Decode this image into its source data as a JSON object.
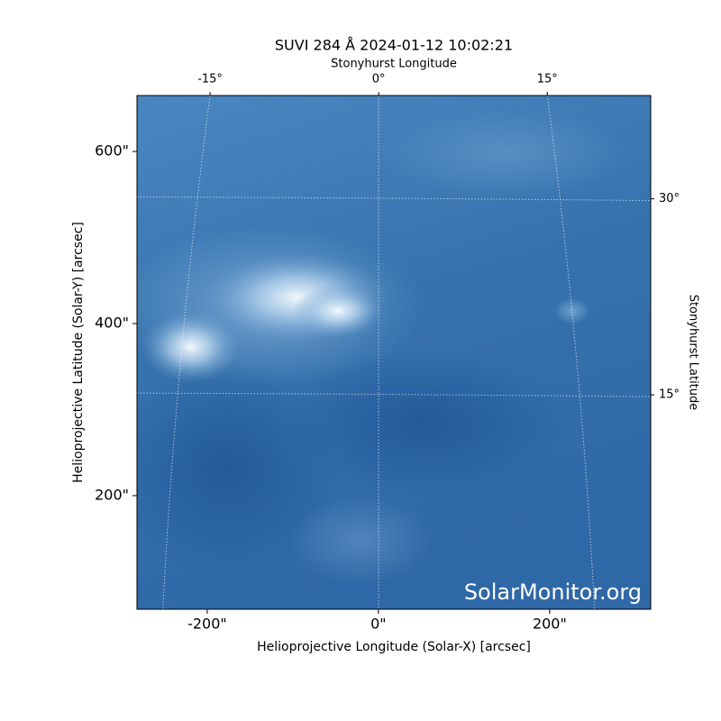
{
  "chart_data": {
    "type": "image",
    "title": "SUVI 284 Å 2024-01-12 10:02:21",
    "xlabel": "Helioprojective Longitude (Solar-X) [arcsec]",
    "ylabel": "Helioprojective Latitude (Solar-Y) [arcsec]",
    "x2label": "Stonyhurst Longitude",
    "y2label": "Stonyhurst Latitude",
    "watermark": "SolarMonitor.org",
    "xlim": [
      -282,
      318
    ],
    "ylim": [
      68,
      665
    ],
    "xticks": [
      {
        "value": -200,
        "label": "-200\""
      },
      {
        "value": 0,
        "label": "0\""
      },
      {
        "value": 200,
        "label": "200\""
      }
    ],
    "yticks": [
      {
        "value": 200,
        "label": "200\""
      },
      {
        "value": 400,
        "label": "400\""
      },
      {
        "value": 600,
        "label": "600\""
      }
    ],
    "x2lim": [
      -21.5,
      24.2
    ],
    "x2ticks": [
      {
        "value": -15,
        "label": "-15°"
      },
      {
        "value": 0,
        "label": "0°"
      },
      {
        "value": 15,
        "label": "15°"
      }
    ],
    "y2lim": [
      -1.4,
      37.9
    ],
    "y2ticks": [
      {
        "value": 15,
        "label": "15°"
      },
      {
        "value": 30,
        "label": "30°"
      }
    ],
    "grid": true
  }
}
